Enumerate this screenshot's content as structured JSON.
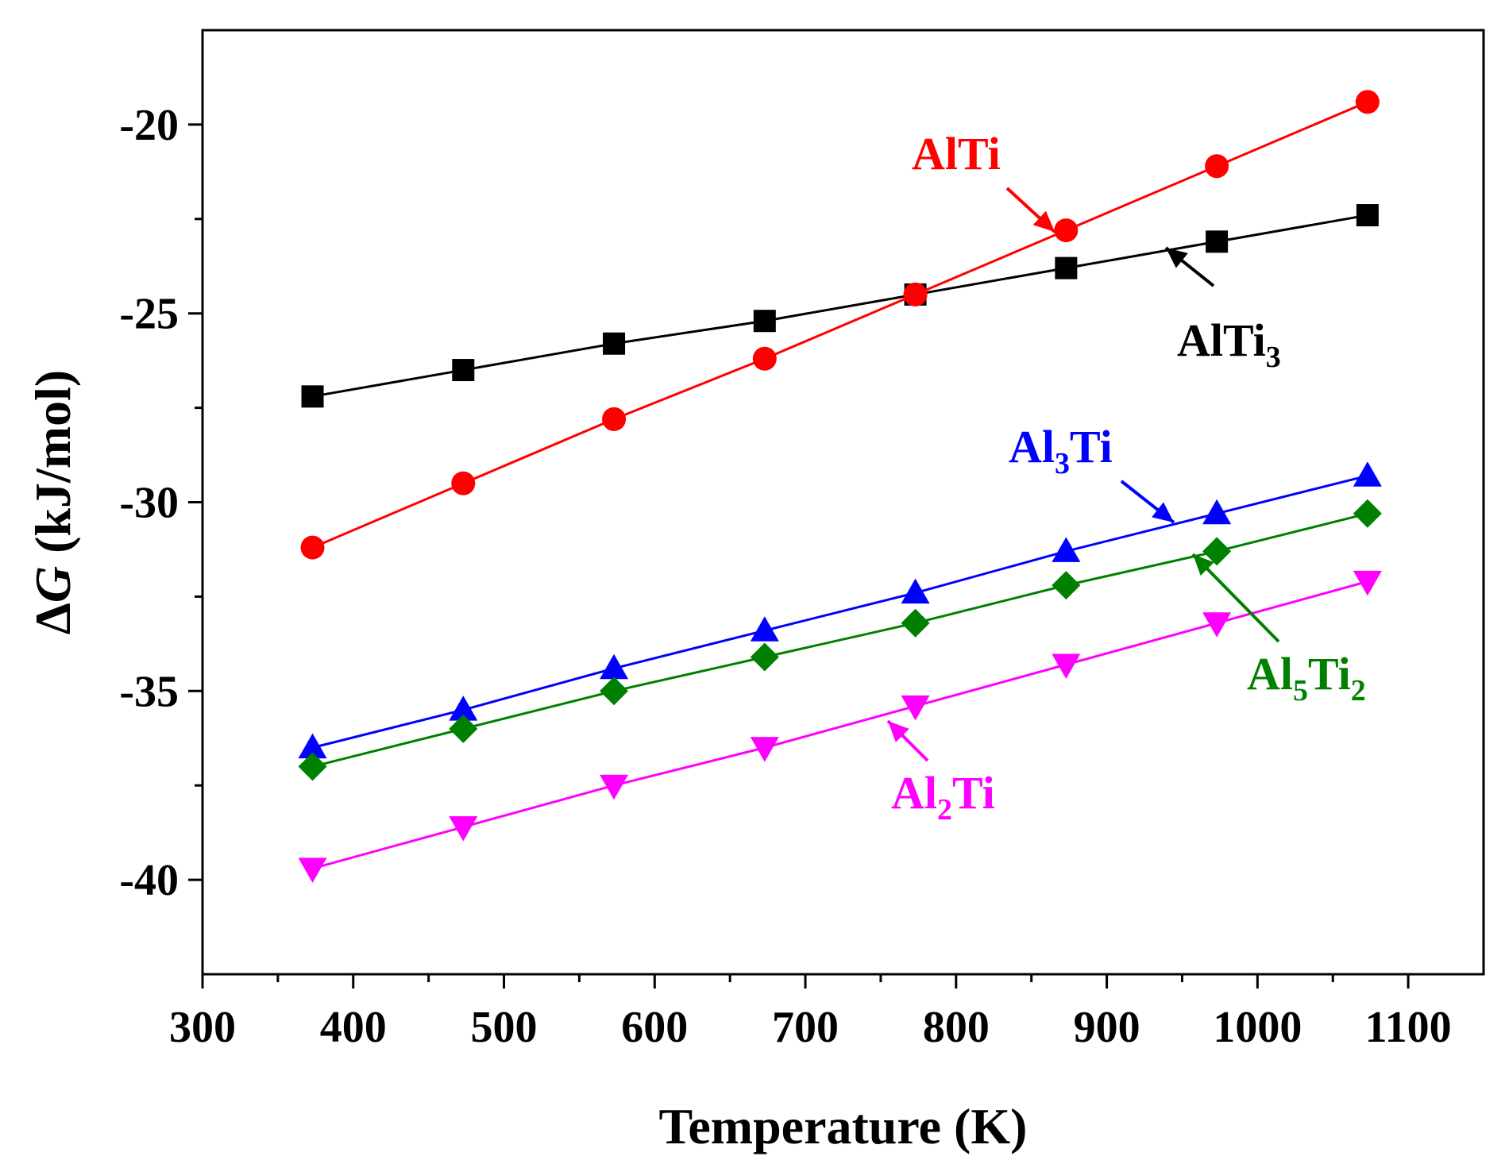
{
  "chart_data": {
    "type": "line",
    "xlabel": "Temperature (K)",
    "ylabel_prefix": "Δ",
    "ylabel_var": "G",
    "ylabel_suffix": " (kJ/mol)",
    "xlim": [
      300,
      1150
    ],
    "ylim": [
      -42.5,
      -17.5
    ],
    "xticks": [
      300,
      400,
      500,
      600,
      700,
      800,
      900,
      1000,
      1100
    ],
    "yticks": [
      -40,
      -35,
      -30,
      -25,
      -20
    ],
    "x": [
      373,
      473,
      573,
      673,
      773,
      873,
      973,
      1073
    ],
    "series": [
      {
        "name": "AlTi3",
        "label_main": "AlTi",
        "label_sub": "3",
        "label_tail": "",
        "color": "#000000",
        "marker": "square",
        "values": [
          -27.2,
          -26.5,
          -25.8,
          -25.2,
          -24.5,
          -23.8,
          -23.1,
          -22.4
        ]
      },
      {
        "name": "AlTi",
        "label_main": "AlTi",
        "label_sub": "",
        "label_tail": "",
        "color": "#ff0000",
        "marker": "circle",
        "values": [
          -31.2,
          -29.5,
          -27.8,
          -26.2,
          -24.5,
          -22.8,
          -21.1,
          -19.4
        ]
      },
      {
        "name": "Al3Ti",
        "label_main": "Al",
        "label_sub": "3",
        "label_tail": "Ti",
        "color": "#0000ff",
        "marker": "triangle-up",
        "values": [
          -36.5,
          -35.5,
          -34.4,
          -33.4,
          -32.4,
          -31.3,
          -30.3,
          -29.3
        ]
      },
      {
        "name": "Al5Ti2",
        "label_main": "Al",
        "label_sub": "5",
        "label_tail": "Ti",
        "label_sub2": "2",
        "color": "#008000",
        "marker": "diamond",
        "values": [
          -37.0,
          -36.0,
          -35.0,
          -34.1,
          -33.2,
          -32.2,
          -31.3,
          -30.3
        ]
      },
      {
        "name": "Al2Ti",
        "label_main": "Al",
        "label_sub": "2",
        "label_tail": "Ti",
        "color": "#ff00ff",
        "marker": "triangle-down",
        "values": [
          -39.7,
          -38.6,
          -37.5,
          -36.5,
          -35.4,
          -34.3,
          -33.2,
          -32.1
        ]
      }
    ]
  }
}
